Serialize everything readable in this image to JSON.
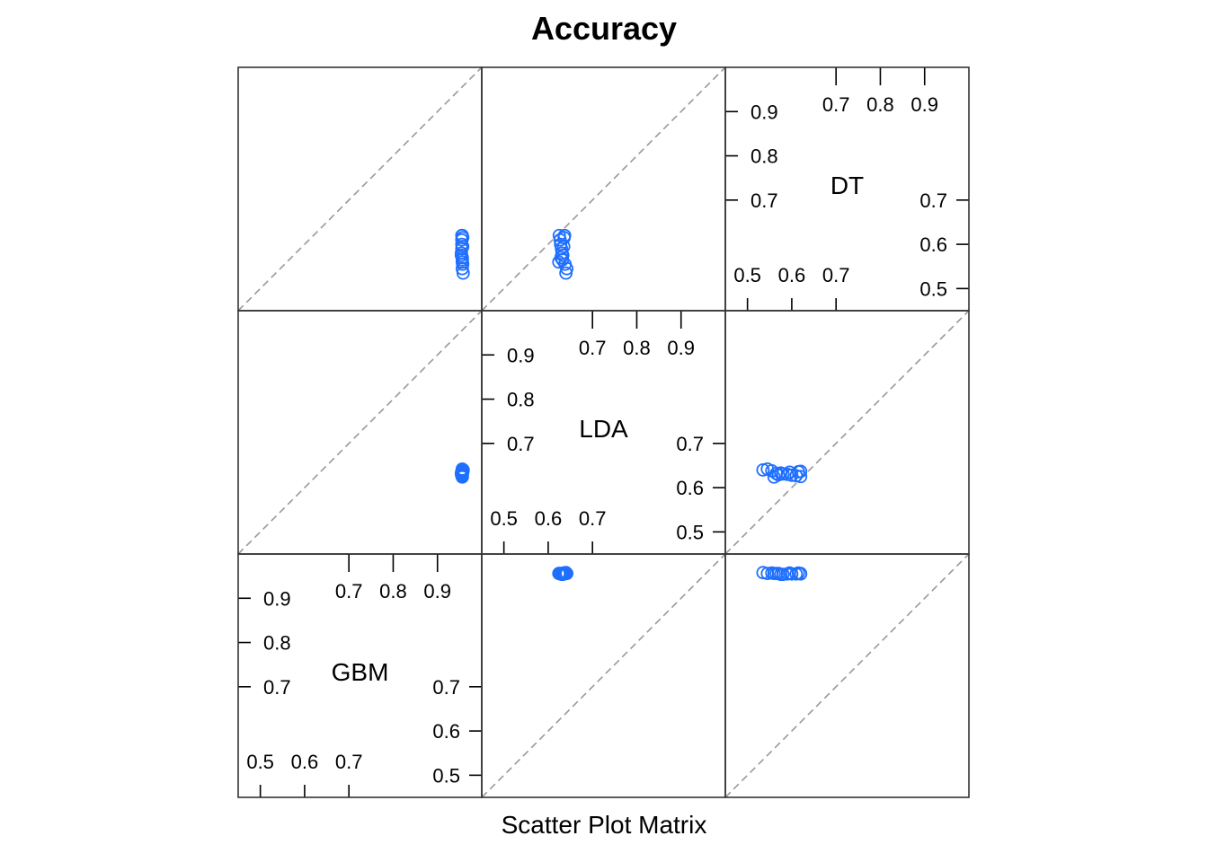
{
  "chart_data": {
    "type": "scatter",
    "title": "Accuracy",
    "xlabel": "Scatter Plot Matrix",
    "variables": [
      "GBM",
      "LDA",
      "DT"
    ],
    "axis_range": [
      0.45,
      1.0
    ],
    "ticks_low": [
      "0.5",
      "0.6",
      "0.7"
    ],
    "ticks_high": [
      "0.7",
      "0.8",
      "0.9"
    ],
    "ticks_low_values": [
      0.5,
      0.6,
      0.7
    ],
    "ticks_high_values": [
      0.7,
      0.8,
      0.9
    ],
    "reference_line": "y = x (dashed)",
    "marker_color": "#1f6fff",
    "values": {
      "GBM": [
        0.955,
        0.957,
        0.956,
        0.954,
        0.958,
        0.955,
        0.957,
        0.956,
        0.954,
        0.956,
        0.955,
        0.957,
        0.956,
        0.955,
        0.956
      ],
      "LDA": [
        0.63,
        0.638,
        0.625,
        0.633,
        0.64,
        0.628,
        0.636,
        0.624,
        0.631,
        0.642,
        0.627,
        0.635,
        0.629,
        0.637,
        0.632
      ],
      "DT": [
        0.59,
        0.555,
        0.62,
        0.575,
        0.535,
        0.6,
        0.615,
        0.56,
        0.58,
        0.545,
        0.61,
        0.595,
        0.57,
        0.62,
        0.565
      ]
    }
  }
}
